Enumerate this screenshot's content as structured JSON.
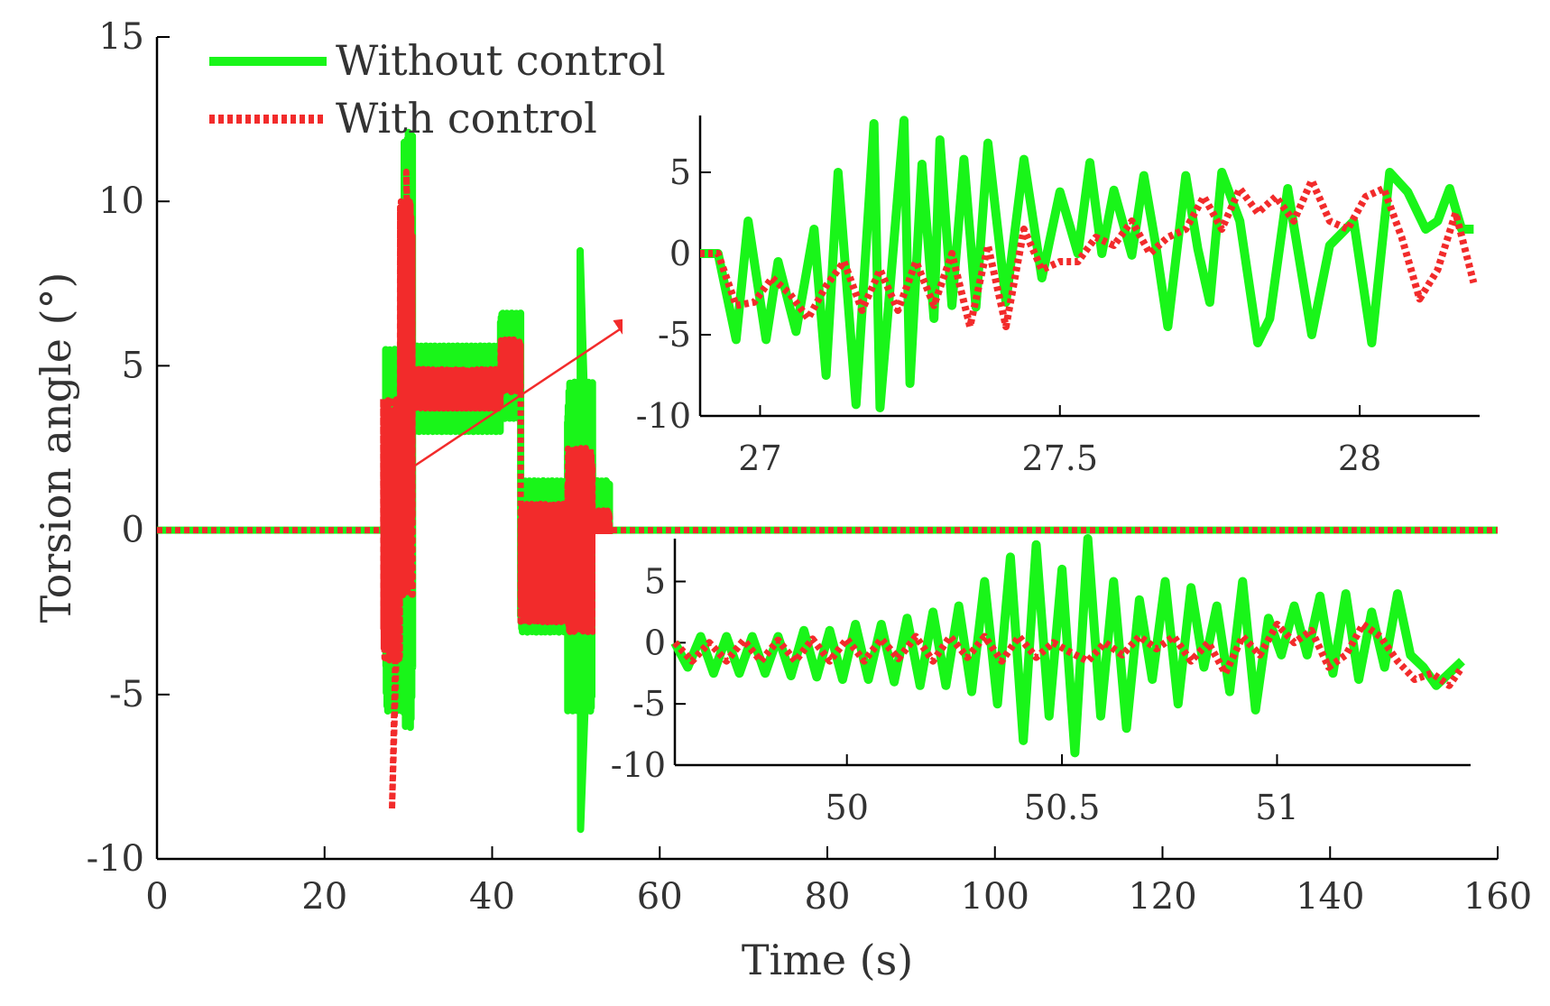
{
  "chart_data": [
    {
      "id": "main",
      "type": "line",
      "title": "",
      "xlabel": "Time (s)",
      "ylabel": "Torsion angle (°)",
      "xlim": [
        0,
        160
      ],
      "ylim": [
        -10,
        15
      ],
      "xticks": [
        0,
        20,
        40,
        60,
        80,
        100,
        120,
        140,
        160
      ],
      "xtick_labels": [
        "0",
        "20",
        "40",
        "60",
        "80",
        "100",
        "120",
        "140",
        "160"
      ],
      "yticks": [
        -10,
        -5,
        0,
        5,
        10,
        15
      ],
      "ytick_labels": [
        "-10",
        "-5",
        "0",
        "5",
        "10",
        "15"
      ],
      "legend": {
        "position": "top-left",
        "entries": [
          {
            "label": "Without control",
            "color": "#19f519",
            "style": "solid"
          },
          {
            "label": "With control",
            "color": "#f22b2b",
            "style": "dotted"
          }
        ]
      },
      "series": [
        {
          "name": "Without control",
          "color": "#19f519",
          "style": "solid",
          "segments": [
            {
              "x0": 0,
              "x1": 27,
              "center": 0,
              "amp": 0
            },
            {
              "x0": 27,
              "x1": 27.3,
              "center": 0,
              "amp": 0,
              "spike_max": 8.2,
              "spike_min": -9.7
            },
            {
              "x0": 27.3,
              "x1": 29.5,
              "center": 0,
              "amp": 5.5
            },
            {
              "x0": 29.5,
              "x1": 30.5,
              "center": 3,
              "amp": 9,
              "spike_max": 12.1
            },
            {
              "x0": 30.5,
              "x1": 41,
              "center": 4.3,
              "amp": 1.3
            },
            {
              "x0": 41,
              "x1": 43.4,
              "center": 5,
              "amp": 1.6
            },
            {
              "x0": 43.4,
              "x1": 49,
              "center": -0.8,
              "amp": 2.3
            },
            {
              "x0": 49,
              "x1": 52,
              "center": -0.5,
              "amp": 5,
              "spike_max": 8.5,
              "spike_min": -9.1
            },
            {
              "x0": 52,
              "x1": 54,
              "center": 0,
              "amp": 1.5
            },
            {
              "x0": 54,
              "x1": 160,
              "center": 0,
              "amp": 0
            }
          ]
        },
        {
          "name": "With control",
          "color": "#f22b2b",
          "style": "dotted",
          "segments": [
            {
              "x0": 0,
              "x1": 27,
              "center": 0,
              "amp": 0
            },
            {
              "x0": 27,
              "x1": 29,
              "center": 0,
              "amp": 4,
              "spike_min": -8.5
            },
            {
              "x0": 29,
              "x1": 30.5,
              "center": 4,
              "amp": 6,
              "spike_max": 10.9
            },
            {
              "x0": 30.5,
              "x1": 41,
              "center": 4.3,
              "amp": 0.6
            },
            {
              "x0": 41,
              "x1": 43.4,
              "center": 5,
              "amp": 0.8
            },
            {
              "x0": 43.4,
              "x1": 49,
              "center": -1,
              "amp": 1.8
            },
            {
              "x0": 49,
              "x1": 52,
              "center": -0.3,
              "amp": 2.8
            },
            {
              "x0": 52,
              "x1": 54,
              "center": 0,
              "amp": 0.6
            },
            {
              "x0": 54,
              "x1": 160,
              "center": 0,
              "amp": 0
            }
          ]
        }
      ]
    },
    {
      "id": "inset-top",
      "type": "line",
      "title": "",
      "xlabel": "",
      "ylabel": "",
      "xlim": [
        26.9,
        28.2
      ],
      "ylim": [
        -10,
        8.5
      ],
      "xticks": [
        27,
        27.5,
        28
      ],
      "xtick_labels": [
        "27",
        "27.5",
        "28"
      ],
      "yticks": [
        -10,
        -5,
        0,
        5
      ],
      "ytick_labels": [
        "-10",
        "-5",
        "0",
        "5"
      ],
      "series": [
        {
          "name": "Without control",
          "color": "#19f519",
          "style": "solid",
          "x": [
            26.9,
            26.93,
            26.96,
            26.98,
            27.01,
            27.03,
            27.06,
            27.09,
            27.11,
            27.13,
            27.16,
            27.19,
            27.2,
            27.24,
            27.25,
            27.27,
            27.29,
            27.3,
            27.32,
            27.34,
            27.36,
            27.38,
            27.41,
            27.44,
            27.47,
            27.5,
            27.53,
            27.55,
            27.57,
            27.59,
            27.62,
            27.64,
            27.66,
            27.68,
            27.71,
            27.73,
            27.75,
            27.77,
            27.8,
            27.83,
            27.85,
            27.88,
            27.92,
            27.95,
            27.99,
            28.02,
            28.05,
            28.08,
            28.11,
            28.13,
            28.15,
            28.17,
            28.19
          ],
          "y": [
            0,
            0,
            -5.3,
            2,
            -5.3,
            -0.5,
            -4.8,
            1.5,
            -7.5,
            5,
            -9.3,
            8,
            -9.5,
            8.2,
            -8,
            5.5,
            -4,
            7,
            -3.2,
            5.8,
            -3.3,
            6.8,
            -3,
            5.8,
            -1.5,
            3.8,
            0,
            5.6,
            0,
            3.9,
            -0.1,
            4.8,
            0.5,
            -4.5,
            4.8,
            0.3,
            -3,
            5,
            2,
            -5.5,
            -4,
            4,
            -5,
            0.5,
            2,
            -5.5,
            5,
            3.8,
            1.5,
            2,
            4,
            1.5,
            1.5
          ]
        },
        {
          "name": "With control",
          "color": "#f22b2b",
          "style": "dotted",
          "x": [
            26.9,
            26.93,
            26.96,
            26.99,
            27.02,
            27.05,
            27.08,
            27.11,
            27.14,
            27.17,
            27.2,
            27.23,
            27.26,
            27.29,
            27.32,
            27.35,
            27.38,
            27.41,
            27.44,
            27.47,
            27.5,
            27.53,
            27.56,
            27.59,
            27.62,
            27.65,
            27.68,
            27.71,
            27.74,
            27.77,
            27.8,
            27.83,
            27.86,
            27.89,
            27.92,
            27.95,
            27.98,
            28.01,
            28.04,
            28.07,
            28.1,
            28.13,
            28.16,
            28.19
          ],
          "y": [
            0,
            0,
            -3.2,
            -3,
            -1.5,
            -2.5,
            -4,
            -2,
            -0.5,
            -3.5,
            -1,
            -3.5,
            -0.5,
            -3.2,
            0,
            -4.5,
            0.5,
            -4.5,
            1.5,
            -1,
            -0.5,
            -0.5,
            1,
            0.5,
            2,
            0,
            1,
            1.5,
            3.5,
            1.5,
            4,
            2.5,
            3.5,
            2,
            4.5,
            2,
            1.5,
            3.5,
            4,
            1,
            -2.8,
            -1,
            2.5,
            -1.8
          ]
        }
      ]
    },
    {
      "id": "inset-bottom",
      "type": "line",
      "title": "",
      "xlabel": "",
      "ylabel": "",
      "xlim": [
        49.6,
        51.45
      ],
      "ylim": [
        -10,
        8.5
      ],
      "xticks": [
        50,
        50.5,
        51
      ],
      "xtick_labels": [
        "50",
        "50.5",
        "51"
      ],
      "yticks": [
        -10,
        -5,
        0,
        5
      ],
      "ytick_labels": [
        "-10",
        "-5",
        "0",
        "5"
      ],
      "series": [
        {
          "name": "Without control",
          "color": "#19f519",
          "style": "solid",
          "x": [
            49.6,
            49.63,
            49.66,
            49.69,
            49.72,
            49.75,
            49.78,
            49.81,
            49.84,
            49.87,
            49.9,
            49.93,
            49.96,
            49.99,
            50.02,
            50.05,
            50.08,
            50.11,
            50.14,
            50.17,
            50.2,
            50.23,
            50.26,
            50.29,
            50.32,
            50.35,
            50.38,
            50.41,
            50.44,
            50.47,
            50.5,
            50.53,
            50.56,
            50.59,
            50.62,
            50.65,
            50.68,
            50.71,
            50.74,
            50.77,
            50.8,
            50.83,
            50.86,
            50.89,
            50.92,
            50.95,
            50.98,
            51.01,
            51.04,
            51.07,
            51.1,
            51.13,
            51.16,
            51.19,
            51.22,
            51.25,
            51.28,
            51.31,
            51.34,
            51.37,
            51.4,
            51.43
          ],
          "y": [
            0,
            -2,
            0.5,
            -2.5,
            0.5,
            -2.5,
            0.5,
            -2.5,
            0.5,
            -2.7,
            1,
            -2.8,
            1,
            -3,
            1.5,
            -3,
            1.5,
            -3.2,
            2,
            -3.5,
            2.5,
            -3.5,
            3,
            -4,
            5,
            -5,
            7,
            -8,
            8,
            -6,
            6,
            -9,
            8.5,
            -6,
            5,
            -7,
            3.5,
            -3,
            5,
            -5,
            4.5,
            -2,
            3,
            -4,
            5,
            -5.5,
            2,
            -1,
            3,
            -1,
            3.8,
            -2.5,
            4,
            -3,
            2.5,
            -2,
            4,
            -1,
            -2,
            -3.5,
            -2.5,
            -1.5
          ]
        },
        {
          "name": "With control",
          "color": "#f22b2b",
          "style": "dotted",
          "x": [
            49.6,
            49.64,
            49.68,
            49.72,
            49.76,
            49.8,
            49.84,
            49.88,
            49.92,
            49.96,
            50,
            50.04,
            50.08,
            50.12,
            50.16,
            50.2,
            50.24,
            50.28,
            50.32,
            50.36,
            50.4,
            50.44,
            50.48,
            50.52,
            50.56,
            50.6,
            50.64,
            50.68,
            50.72,
            50.76,
            50.8,
            50.84,
            50.88,
            50.92,
            50.96,
            51,
            51.04,
            51.08,
            51.12,
            51.16,
            51.2,
            51.24,
            51.28,
            51.32,
            51.36,
            51.4,
            51.43
          ],
          "y": [
            0,
            -1.5,
            0,
            -1.5,
            0.2,
            -1.5,
            0.2,
            -1.5,
            0.3,
            -1.5,
            0.3,
            -1.5,
            0.3,
            -1.3,
            0.5,
            -1.5,
            0.5,
            -1.2,
            0.5,
            -1.5,
            0.5,
            -1.2,
            0,
            -0.8,
            -1.5,
            0,
            -1,
            0.5,
            -0.5,
            0.5,
            -1.5,
            0,
            -2.5,
            0.5,
            -1,
            1.5,
            0,
            1,
            -2,
            -1,
            1.5,
            0.5,
            -1.5,
            -3,
            -2.5,
            -3.5,
            -2
          ]
        }
      ]
    }
  ]
}
